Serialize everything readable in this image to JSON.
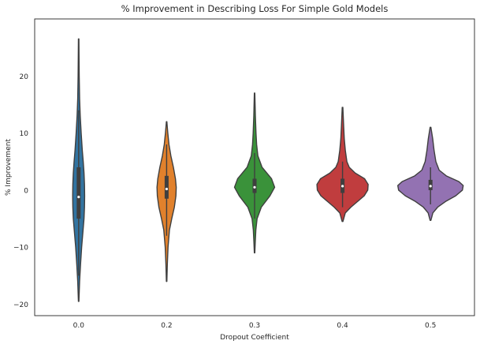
{
  "chart_data": {
    "type": "violin",
    "title": "% Improvement in Describing Loss For Simple Gold Models",
    "xlabel": "Dropout Coefficient",
    "ylabel": "% Improvement",
    "categories": [
      "0.0",
      "0.2",
      "0.3",
      "0.4",
      "0.5"
    ],
    "ylim": [
      -22,
      30
    ],
    "yticks": [
      -20,
      -10,
      0,
      10,
      20
    ],
    "grid": false,
    "series": [
      {
        "category": "0.0",
        "color": "#3274a1",
        "min": -19.5,
        "q1": -5.0,
        "median": -1.2,
        "q3": 4.0,
        "max": 26.5,
        "whisker_low": -15.0,
        "whisker_high": 14.0,
        "profile": [
          [
            -19.5,
            0.3
          ],
          [
            -16,
            1.2
          ],
          [
            -13,
            2.4
          ],
          [
            -10,
            3.8
          ],
          [
            -7,
            5.6
          ],
          [
            -5,
            6.8
          ],
          [
            -3,
            7.4
          ],
          [
            -1,
            7.6
          ],
          [
            1,
            7.4
          ],
          [
            3,
            6.8
          ],
          [
            5,
            5.8
          ],
          [
            7,
            4.6
          ],
          [
            10,
            3.2
          ],
          [
            13,
            2.0
          ],
          [
            16,
            1.2
          ],
          [
            20,
            0.7
          ],
          [
            23,
            0.5
          ],
          [
            26.5,
            0.3
          ]
        ]
      },
      {
        "category": "0.2",
        "color": "#e1812c",
        "min": -16.0,
        "q1": -1.5,
        "median": 0.2,
        "q3": 2.5,
        "max": 12.0,
        "whisker_low": -8.0,
        "whisker_high": 8.0,
        "profile": [
          [
            -16,
            0.3
          ],
          [
            -13,
            0.9
          ],
          [
            -10,
            1.8
          ],
          [
            -7,
            3.6
          ],
          [
            -5,
            6.5
          ],
          [
            -3,
            9.8
          ],
          [
            -1,
            11.8
          ],
          [
            0.5,
            12.2
          ],
          [
            2,
            11.2
          ],
          [
            4,
            8.6
          ],
          [
            6,
            5.4
          ],
          [
            8,
            3.0
          ],
          [
            10,
            1.5
          ],
          [
            12,
            0.3
          ]
        ]
      },
      {
        "category": "0.3",
        "color": "#3a923a",
        "min": -11.0,
        "q1": -0.5,
        "median": 0.5,
        "q3": 2.0,
        "max": 17.0,
        "whisker_low": -5.0,
        "whisker_high": 6.5,
        "profile": [
          [
            -11,
            0.3
          ],
          [
            -9,
            0.9
          ],
          [
            -7,
            1.6
          ],
          [
            -5,
            3.2
          ],
          [
            -3,
            8.5
          ],
          [
            -1,
            19.5
          ],
          [
            0.5,
            25.5
          ],
          [
            2,
            21.5
          ],
          [
            4,
            9.5
          ],
          [
            6,
            4.2
          ],
          [
            8,
            2.6
          ],
          [
            10,
            1.8
          ],
          [
            13,
            1.0
          ],
          [
            17,
            0.3
          ]
        ]
      },
      {
        "category": "0.4",
        "color": "#c03d3e",
        "min": -5.5,
        "q1": -0.5,
        "median": 0.7,
        "q3": 2.0,
        "max": 14.5,
        "whisker_low": -3.0,
        "whisker_high": 5.0,
        "profile": [
          [
            -5.5,
            0.5
          ],
          [
            -4,
            3.5
          ],
          [
            -3,
            10.5
          ],
          [
            -2,
            19.0
          ],
          [
            -1,
            27.5
          ],
          [
            0,
            32.0
          ],
          [
            1,
            32.5
          ],
          [
            2,
            28.0
          ],
          [
            3,
            16.0
          ],
          [
            4,
            8.5
          ],
          [
            5,
            5.5
          ],
          [
            7,
            3.5
          ],
          [
            9,
            2.2
          ],
          [
            11,
            1.5
          ],
          [
            14.5,
            0.4
          ]
        ]
      },
      {
        "category": "0.5",
        "color": "#9372b2",
        "min": -5.3,
        "q1": 0.0,
        "median": 0.7,
        "q3": 1.8,
        "max": 11.0,
        "whisker_low": -2.5,
        "whisker_high": 4.0,
        "profile": [
          [
            -5.3,
            0.5
          ],
          [
            -4,
            3.0
          ],
          [
            -3,
            9.0
          ],
          [
            -2,
            19.0
          ],
          [
            -1,
            32.0
          ],
          [
            0,
            40.5
          ],
          [
            0.8,
            41.5
          ],
          [
            1.5,
            36.0
          ],
          [
            2.5,
            20.0
          ],
          [
            3.5,
            11.0
          ],
          [
            5,
            6.8
          ],
          [
            7,
            4.5
          ],
          [
            9,
            2.8
          ],
          [
            11,
            0.5
          ]
        ]
      }
    ]
  }
}
